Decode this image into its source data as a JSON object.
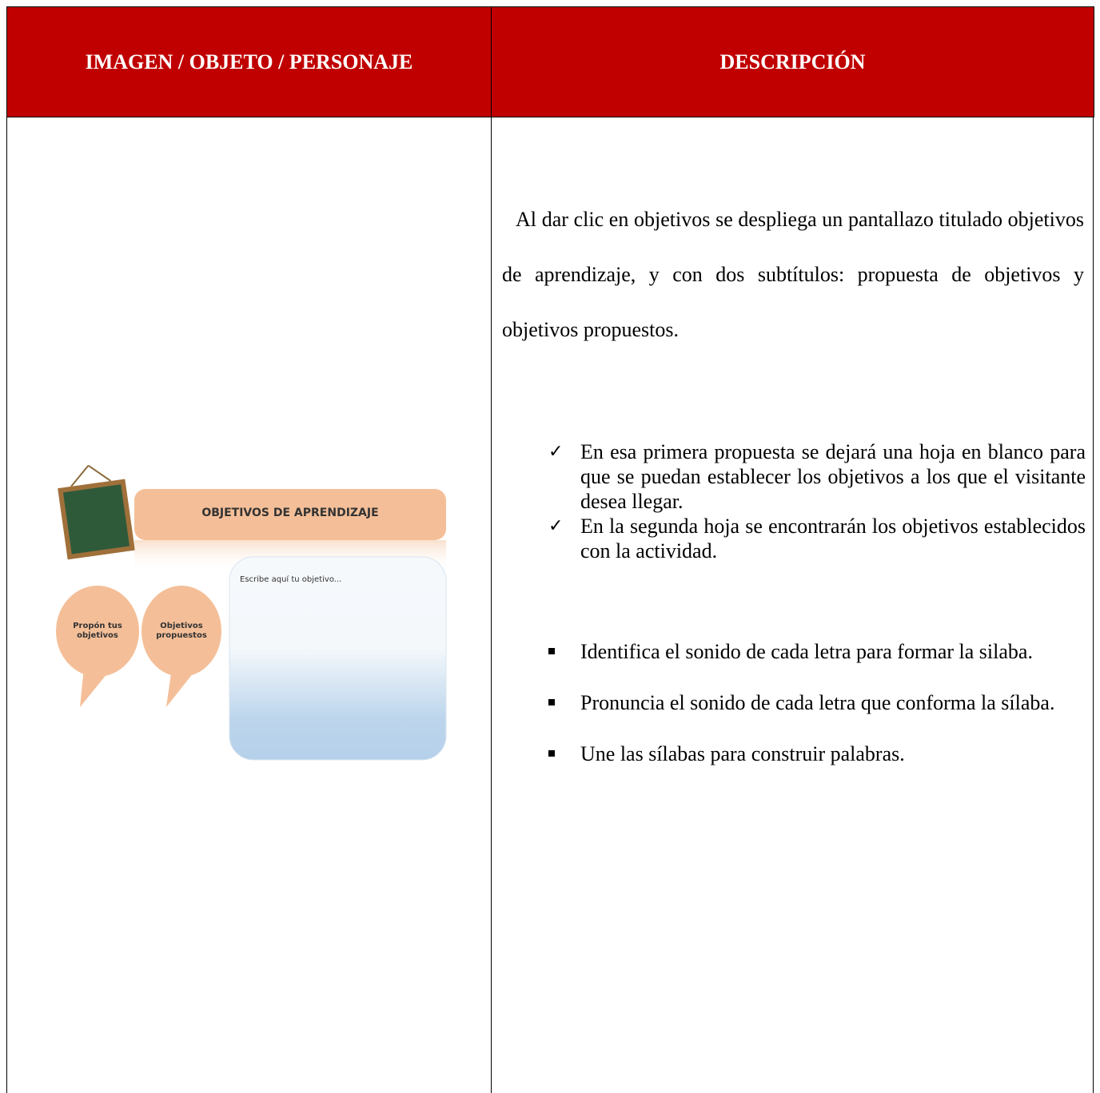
{
  "table": {
    "headers": [
      "IMAGEN / OBJETO / PERSONAJE",
      "DESCRIPCIÓN"
    ]
  },
  "image": {
    "title": "OBJETIVOS DE  APRENDIZAJE",
    "placeholder": "Escribe aquí tu objetivo...",
    "buttons": [
      "Propón tus objetivos",
      "Objetivos propuestos"
    ]
  },
  "description": {
    "paragraph": "Al dar clic en objetivos se despliega un pantallazo titulado objetivos de aprendizaje, y con dos subtítulos: propuesta de objetivos y objetivos propuestos.",
    "checks": [
      "En esa primera propuesta se dejará una hoja en blanco para que se puedan establecer los objetivos a los que el visitante desea llegar.",
      "En la segunda hoja se encontrarán los objetivos establecidos con la actividad."
    ],
    "bullets": [
      "Identifica el sonido de cada letra para formar la silaba.",
      "Pronuncia el sonido de cada letra que conforma la sílaba.",
      "Une las sílabas para construir palabras."
    ]
  }
}
